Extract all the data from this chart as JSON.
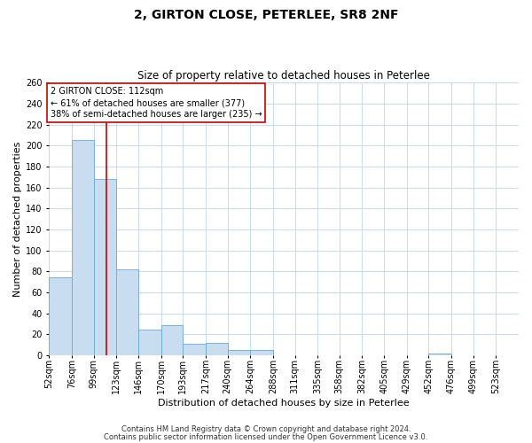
{
  "title": "2, GIRTON CLOSE, PETERLEE, SR8 2NF",
  "subtitle": "Size of property relative to detached houses in Peterlee",
  "xlabel": "Distribution of detached houses by size in Peterlee",
  "ylabel": "Number of detached properties",
  "bar_values": [
    74,
    205,
    168,
    82,
    24,
    29,
    11,
    12,
    5,
    5,
    0,
    0,
    0,
    0,
    0,
    0,
    0,
    2,
    0,
    0
  ],
  "bar_labels": [
    "52sqm",
    "76sqm",
    "99sqm",
    "123sqm",
    "146sqm",
    "170sqm",
    "193sqm",
    "217sqm",
    "240sqm",
    "264sqm",
    "288sqm",
    "311sqm",
    "335sqm",
    "358sqm",
    "382sqm",
    "405sqm",
    "429sqm",
    "452sqm",
    "476sqm",
    "499sqm",
    "523sqm"
  ],
  "bar_color": "#c9ddf0",
  "bar_edge_color": "#6aaad4",
  "vline_x": 112,
  "vline_color": "#cc0000",
  "ylim": [
    0,
    260
  ],
  "yticks": [
    0,
    20,
    40,
    60,
    80,
    100,
    120,
    140,
    160,
    180,
    200,
    220,
    240,
    260
  ],
  "annotation_title": "2 GIRTON CLOSE: 112sqm",
  "annotation_line1": "← 61% of detached houses are smaller (377)",
  "annotation_line2": "38% of semi-detached houses are larger (235) →",
  "annotation_box_color": "#ffffff",
  "annotation_box_edge": "#cc0000",
  "footer_line1": "Contains HM Land Registry data © Crown copyright and database right 2024.",
  "footer_line2": "Contains public sector information licensed under the Open Government Licence v3.0.",
  "bin_edges": [
    52,
    76,
    99,
    123,
    146,
    170,
    193,
    217,
    240,
    264,
    288,
    311,
    335,
    358,
    382,
    405,
    429,
    452,
    476,
    499,
    523
  ],
  "background_color": "#ffffff",
  "grid_color": "#c8d8ee",
  "title_fontsize": 10,
  "subtitle_fontsize": 8.5,
  "axis_label_fontsize": 8,
  "tick_fontsize": 7,
  "footer_fontsize": 6
}
